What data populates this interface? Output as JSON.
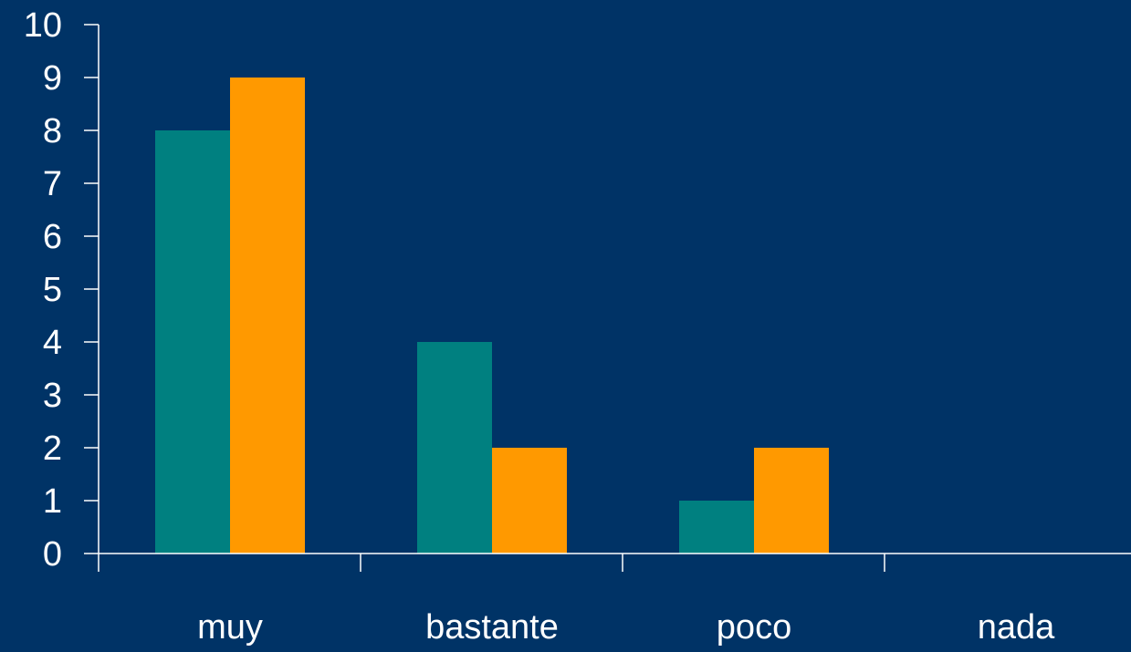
{
  "colors": {
    "background": "#003366",
    "axis": "#FFFFFF",
    "text": "#FFFFFF"
  },
  "chart_data": {
    "type": "bar",
    "title": "",
    "xlabel": "",
    "ylabel": "",
    "categories": [
      "muy",
      "bastante",
      "poco",
      "nada"
    ],
    "series": [
      {
        "values": [
          8,
          4,
          1,
          0
        ],
        "color": "#008080"
      },
      {
        "values": [
          9,
          2,
          2,
          0
        ],
        "color": "#FF9900"
      }
    ],
    "ylim": [
      0,
      10
    ],
    "yticks": [
      "0",
      "1",
      "2",
      "3",
      "4",
      "5",
      "6",
      "7",
      "8",
      "9",
      "10"
    ],
    "grid": false,
    "legend": "none"
  }
}
